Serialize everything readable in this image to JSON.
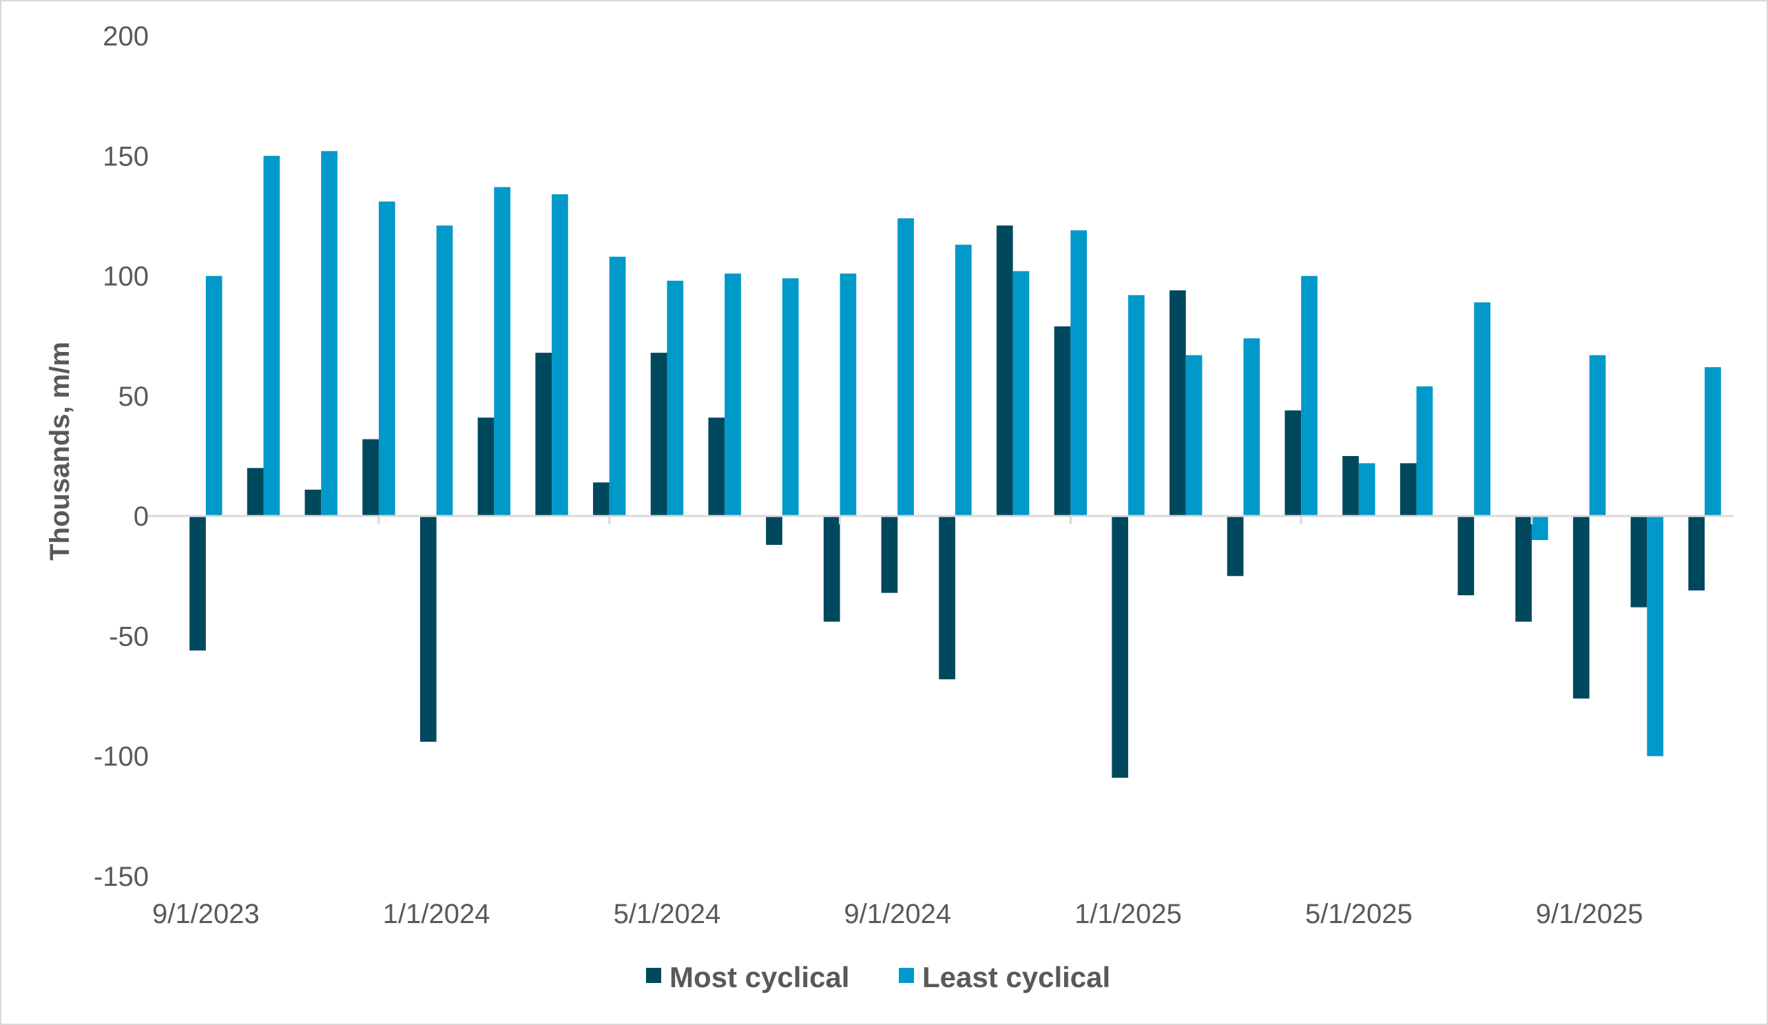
{
  "chart_data": {
    "type": "bar",
    "title": "",
    "xlabel": "",
    "ylabel": "Thousands, m/m",
    "ylim": [
      -150,
      200
    ],
    "yticks": [
      200,
      150,
      100,
      50,
      0,
      -50,
      -100,
      -150
    ],
    "grid": false,
    "legend_placement": "bottom",
    "categories": [
      "9/1/2023",
      "10/1/2023",
      "11/1/2023",
      "12/1/2023",
      "1/1/2024",
      "2/1/2024",
      "3/1/2024",
      "4/1/2024",
      "5/1/2024",
      "6/1/2024",
      "7/1/2024",
      "8/1/2024",
      "9/1/2024",
      "10/1/2024",
      "11/1/2024",
      "12/1/2024",
      "1/1/2025",
      "2/1/2025",
      "3/1/2025",
      "4/1/2025",
      "5/1/2025",
      "6/1/2025",
      "7/1/2025",
      "8/1/2025",
      "9/1/2025",
      "10/1/2025",
      "11/1/2025"
    ],
    "xtick_labels": [
      "9/1/2023",
      "1/1/2024",
      "5/1/2024",
      "9/1/2024",
      "1/1/2025",
      "5/1/2025",
      "9/1/2025"
    ],
    "series": [
      {
        "name": "Most cyclical",
        "color": "#00485E",
        "values": [
          -56,
          20,
          11,
          32,
          -94,
          41,
          68,
          14,
          68,
          41,
          -12,
          -44,
          -32,
          -68,
          121,
          79,
          -109,
          94,
          -25,
          44,
          25,
          22,
          -33,
          -44,
          -76,
          -38,
          -31
        ]
      },
      {
        "name": "Least cyclical",
        "color": "#0099C9",
        "values": [
          100,
          150,
          152,
          131,
          121,
          137,
          134,
          108,
          98,
          101,
          99,
          101,
          124,
          113,
          102,
          119,
          92,
          67,
          74,
          100,
          22,
          54,
          89,
          -10,
          67,
          -100,
          62
        ]
      }
    ]
  }
}
